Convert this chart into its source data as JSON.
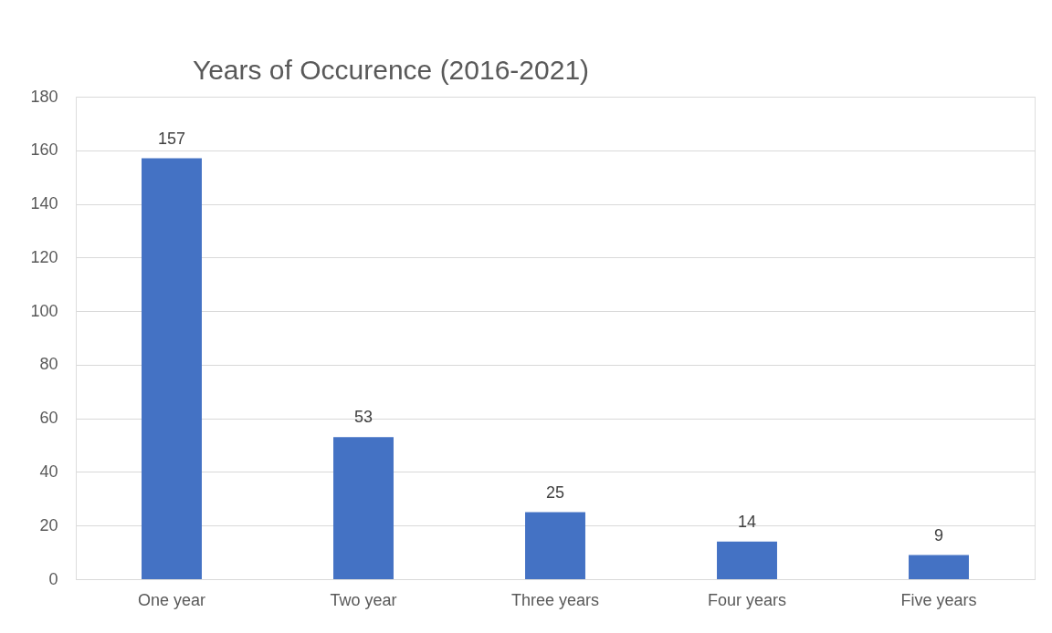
{
  "chart_data": {
    "type": "bar",
    "title": "Years of Occurence (2016-2021)",
    "categories": [
      "One year",
      "Two year",
      "Three years",
      "Four years",
      "Five years"
    ],
    "values": [
      157,
      53,
      25,
      14,
      9
    ],
    "color": "#4472c4",
    "ylim": [
      0,
      180
    ],
    "yticks": [
      0,
      20,
      40,
      60,
      80,
      100,
      120,
      140,
      160,
      180
    ],
    "grid": "y",
    "data_labels": true
  }
}
